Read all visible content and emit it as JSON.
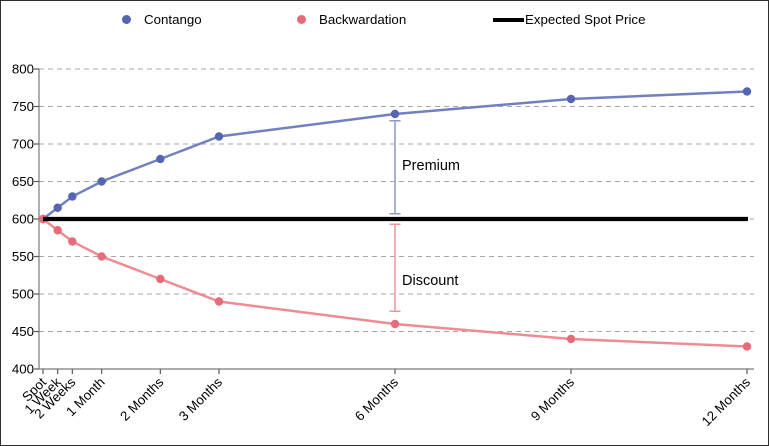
{
  "chart_data": {
    "type": "line",
    "title": "",
    "x_unit": "months",
    "x": [
      0,
      0.25,
      0.5,
      1,
      2,
      3,
      6,
      9,
      12
    ],
    "categories": [
      "Spot",
      "1 Week",
      "2 Weeks",
      "1 Month",
      "2 Months",
      "3 Months",
      "6 Months",
      "9 Months",
      "12 Months"
    ],
    "series": [
      {
        "name": "Contango",
        "line_color": "#7380BF",
        "marker_color": "#5665B1",
        "marker": "circle",
        "values": [
          600,
          615,
          630,
          650,
          680,
          710,
          740,
          760,
          770
        ]
      },
      {
        "name": "Backwardation",
        "line_color": "#EE8B93",
        "marker_color": "#E56C78",
        "marker": "circle",
        "values": [
          600,
          585,
          570,
          550,
          520,
          490,
          460,
          440,
          430
        ]
      },
      {
        "name": "Expected Spot Price",
        "line_color": "#000000",
        "marker": "none",
        "constant": 600
      }
    ],
    "ylim": [
      400,
      800
    ],
    "yticks": [
      400,
      450,
      500,
      550,
      600,
      650,
      700,
      750,
      800
    ],
    "grid": "horizontal-dashed",
    "legend_position": "top",
    "annotations": [
      {
        "label": "Premium",
        "x": 6,
        "from": 607,
        "to": 731,
        "label_at": 672,
        "color": "#8C97C6"
      },
      {
        "label": "Discount",
        "x": 6,
        "from": 477,
        "to": 593,
        "label_at": 519,
        "color": "#E9959D"
      }
    ],
    "colors": {
      "gridline": "#A8A8A8",
      "axis": "#7A7A7A",
      "tick": "#595959",
      "label_text": "#000000"
    }
  }
}
